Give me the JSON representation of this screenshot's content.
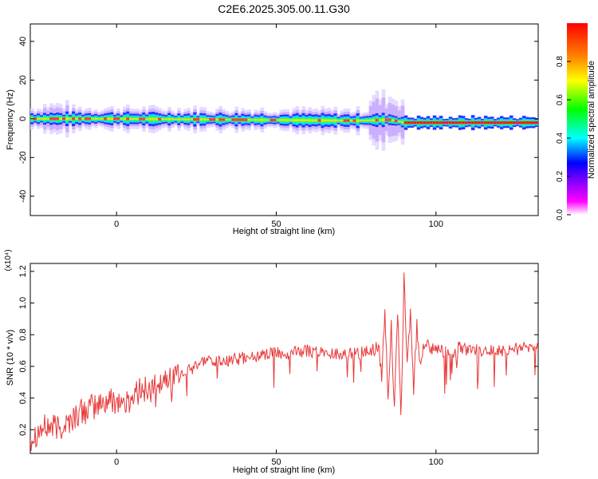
{
  "title": "C2E6.2025.305.00.11.G30",
  "chart_data": [
    {
      "type": "heatmap",
      "xlabel": "Height of straight line (km)",
      "ylabel": "Frequency (Hz)",
      "xlim": [
        -27,
        132
      ],
      "ylim": [
        -50,
        49
      ],
      "xticks": [
        0,
        50,
        100
      ],
      "xtick_labels": [
        "0",
        "50",
        "100"
      ],
      "yticks": [
        -40,
        -20,
        0,
        20,
        40
      ],
      "ytick_labels": [
        "-40",
        "-20",
        "0",
        "20",
        "40"
      ],
      "colorbar": {
        "label": "Normalized spectral amplitude",
        "range": [
          0,
          1
        ],
        "ticks": [
          0,
          0.2,
          0.4,
          0.6,
          0.8
        ],
        "tick_labels": [
          "0.0",
          "0.2",
          "0.4",
          "0.6",
          "0.8"
        ],
        "colors": [
          "#ffffff",
          "#ff00ff",
          "#8800ff",
          "#0000ff",
          "#00ffff",
          "#00ff00",
          "#ffff00",
          "#ff8800",
          "#ff0000"
        ]
      },
      "band": {
        "center_hz": [
          [
            -27,
            0
          ],
          [
            0,
            0
          ],
          [
            75,
            -1
          ],
          [
            85,
            -0.5
          ],
          [
            90,
            -2
          ],
          [
            132,
            -2
          ]
        ],
        "strong_from_km": 90,
        "strong_to_km": 132
      }
    },
    {
      "type": "line",
      "xlabel": "Height of straight line (km)",
      "ylabel": "SNR (10 * v/v)",
      "y_multiplier": "(x10⁴)",
      "xlim": [
        -27,
        132
      ],
      "ylim": [
        0.05,
        1.25
      ],
      "xticks": [
        0,
        50,
        100
      ],
      "xtick_labels": [
        "0",
        "50",
        "100"
      ],
      "yticks": [
        0.2,
        0.4,
        0.6,
        0.8,
        1.0,
        1.2
      ],
      "ytick_labels": [
        "0.2",
        "0.4",
        "0.6",
        "0.8",
        "1.0",
        "1.2"
      ],
      "color": "#e8393a",
      "series": [
        {
          "x": [
            -27,
            -24,
            -21,
            -18,
            -15,
            -12,
            -9,
            -6,
            -3,
            0,
            3,
            6,
            9,
            12,
            15,
            18,
            21,
            24,
            27,
            30,
            33,
            36,
            39,
            42,
            45,
            48,
            51,
            54,
            57,
            60,
            63,
            66,
            69,
            72,
            75,
            78,
            80,
            82,
            83,
            84,
            85,
            86,
            87,
            88,
            89,
            90,
            91,
            92,
            93,
            94,
            95,
            96,
            98,
            100,
            102,
            104,
            106,
            106.5,
            107,
            110,
            115,
            120,
            125,
            132
          ],
          "y": [
            0.15,
            0.2,
            0.22,
            0.21,
            0.25,
            0.3,
            0.33,
            0.35,
            0.38,
            0.39,
            0.36,
            0.43,
            0.45,
            0.47,
            0.51,
            0.54,
            0.56,
            0.59,
            0.62,
            0.63,
            0.63,
            0.64,
            0.65,
            0.66,
            0.67,
            0.68,
            0.68,
            0.68,
            0.69,
            0.7,
            0.69,
            0.68,
            0.68,
            0.68,
            0.68,
            0.69,
            0.7,
            0.73,
            0.55,
            0.95,
            0.42,
            0.85,
            0.3,
            0.97,
            0.25,
            1.15,
            0.6,
            0.95,
            0.45,
            0.85,
            0.6,
            0.75,
            0.72,
            0.7,
            0.7,
            0.69,
            0.68,
            0.6,
            0.72,
            0.7,
            0.7,
            0.7,
            0.71,
            0.72
          ]
        }
      ]
    }
  ]
}
